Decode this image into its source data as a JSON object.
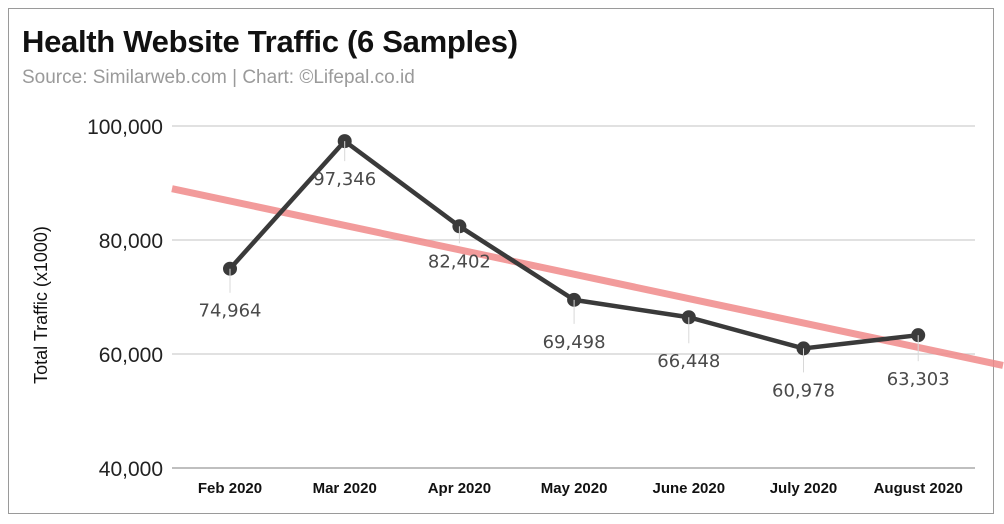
{
  "chart_data": {
    "type": "line",
    "title": "Health Website Traffic (6 Samples)",
    "subtitle": "Source: Similarweb.com | Chart: ©Lifepal.co.id",
    "xlabel": "",
    "ylabel": "Total Traffic (x1000)",
    "ylim": [
      40000,
      100000
    ],
    "yticks": [
      40000,
      60000,
      80000,
      100000
    ],
    "ytick_labels": [
      "40,000",
      "60,000",
      "80,000",
      "100,000"
    ],
    "categories": [
      "Feb 2020",
      "Mar 2020",
      "Apr 2020",
      "May 2020",
      "June 2020",
      "July 2020",
      "August 2020"
    ],
    "series": [
      {
        "name": "Total Traffic",
        "values": [
          74964,
          97346,
          82402,
          69498,
          66448,
          60978,
          63303
        ],
        "labels": [
          "74,964",
          "97,346",
          "82,402",
          "69,498",
          "66,448",
          "60,978",
          "63,303"
        ],
        "color": "#3a3a3a"
      }
    ],
    "trendline": {
      "start": 89000,
      "end": 58000,
      "color": "#f08a8a"
    },
    "grid": true,
    "legend": "none"
  }
}
